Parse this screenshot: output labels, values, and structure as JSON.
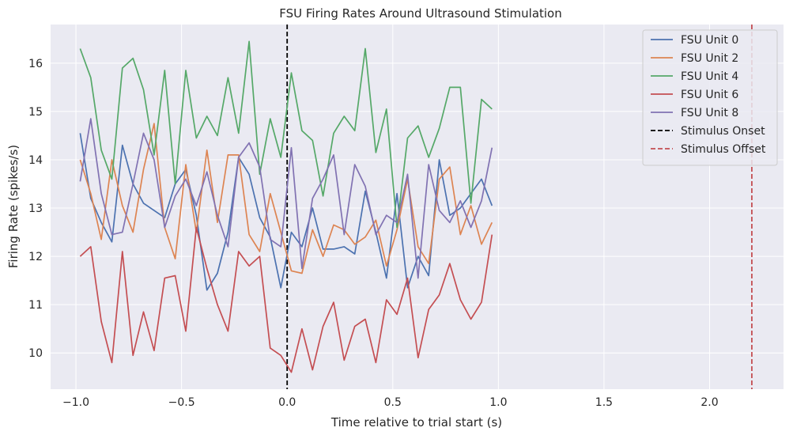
{
  "chart_data": {
    "type": "line",
    "title": "FSU Firing Rates Around Ultrasound Stimulation",
    "xlabel": "Time relative to trial start (s)",
    "ylabel": "Firing Rate (spikes/s)",
    "xlim": [
      -1.12,
      2.35
    ],
    "ylim": [
      9.25,
      16.8
    ],
    "x_ticks": [
      -1.0,
      -0.5,
      0.0,
      0.5,
      1.0,
      1.5,
      2.0
    ],
    "x_tick_labels": [
      "−1.0",
      "−0.5",
      "0.0",
      "0.5",
      "1.0",
      "1.5",
      "2.0"
    ],
    "y_ticks": [
      10,
      11,
      12,
      13,
      14,
      15,
      16
    ],
    "y_tick_labels": [
      "10",
      "11",
      "12",
      "13",
      "14",
      "15",
      "16"
    ],
    "grid": true,
    "legend_position": "top-right",
    "x": [
      -0.98,
      -0.93,
      -0.88,
      -0.83,
      -0.78,
      -0.73,
      -0.68,
      -0.63,
      -0.58,
      -0.53,
      -0.48,
      -0.43,
      -0.38,
      -0.33,
      -0.28,
      -0.23,
      -0.18,
      -0.13,
      -0.08,
      -0.03,
      0.02,
      0.07,
      0.12,
      0.17,
      0.22,
      0.27,
      0.32,
      0.37,
      0.42,
      0.47,
      0.52,
      0.57,
      0.62,
      0.67,
      0.72,
      0.77,
      0.82,
      0.87,
      0.92,
      0.97
    ],
    "series": [
      {
        "name": "FSU Unit 0",
        "color": "#4c72b0",
        "values": [
          14.55,
          13.2,
          12.7,
          12.3,
          14.3,
          13.5,
          13.1,
          12.95,
          12.8,
          13.5,
          13.8,
          12.85,
          11.3,
          11.65,
          12.5,
          14.05,
          13.7,
          12.8,
          12.4,
          11.35,
          12.5,
          12.2,
          13.0,
          12.15,
          12.15,
          12.2,
          12.05,
          13.35,
          12.5,
          11.55,
          13.3,
          11.35,
          12.0,
          11.6,
          14.0,
          12.85,
          13.0,
          13.3,
          13.6,
          13.05
        ]
      },
      {
        "name": "FSU Unit 2",
        "color": "#dd8452",
        "values": [
          14.0,
          13.3,
          12.35,
          14.0,
          13.05,
          12.5,
          13.8,
          14.75,
          12.6,
          11.95,
          13.9,
          12.5,
          14.2,
          12.7,
          14.1,
          14.1,
          12.45,
          12.1,
          13.3,
          12.5,
          11.7,
          11.65,
          12.55,
          12.0,
          12.65,
          12.55,
          12.25,
          12.4,
          12.75,
          11.8,
          12.55,
          13.6,
          12.2,
          11.85,
          13.6,
          13.85,
          12.45,
          13.05,
          12.25,
          12.7
        ]
      },
      {
        "name": "FSU Unit 4",
        "color": "#55a868",
        "values": [
          16.3,
          15.7,
          14.2,
          13.6,
          15.9,
          16.1,
          15.45,
          14.1,
          15.85,
          13.5,
          15.85,
          14.45,
          14.9,
          14.5,
          15.7,
          14.55,
          16.45,
          13.7,
          14.85,
          14.05,
          15.8,
          14.6,
          14.4,
          13.25,
          14.55,
          14.9,
          14.6,
          16.3,
          14.15,
          15.05,
          12.6,
          14.45,
          14.7,
          14.05,
          14.65,
          15.5,
          15.5,
          13.1,
          15.25,
          15.05
        ]
      },
      {
        "name": "FSU Unit 6",
        "color": "#c44e52",
        "values": [
          12.0,
          12.2,
          10.65,
          9.8,
          12.1,
          9.95,
          10.85,
          10.05,
          11.55,
          11.6,
          10.45,
          12.6,
          11.75,
          11.0,
          10.45,
          12.1,
          11.8,
          12.0,
          10.1,
          9.95,
          9.6,
          10.5,
          9.65,
          10.55,
          11.05,
          9.85,
          10.55,
          10.7,
          9.8,
          11.1,
          10.8,
          11.55,
          9.9,
          10.9,
          11.2,
          11.85,
          11.1,
          10.7,
          11.05,
          12.45
        ]
      },
      {
        "name": "FSU Unit 8",
        "color": "#8172b2",
        "values": [
          13.55,
          14.85,
          13.3,
          12.45,
          12.5,
          13.5,
          14.55,
          14.0,
          12.6,
          13.25,
          13.6,
          13.05,
          13.75,
          12.85,
          12.2,
          14.05,
          14.35,
          13.85,
          12.35,
          12.2,
          14.25,
          11.75,
          13.2,
          13.6,
          14.1,
          12.45,
          13.9,
          13.45,
          12.45,
          12.85,
          12.7,
          13.7,
          11.55,
          13.9,
          12.95,
          12.7,
          13.15,
          12.6,
          13.15,
          14.25
        ]
      }
    ],
    "vlines": [
      {
        "name": "Stimulus Onset",
        "x": 0.0,
        "color": "#000000",
        "style": "dashed"
      },
      {
        "name": "Stimulus Offset",
        "x": 2.2,
        "color": "#c44e52",
        "style": "dashed"
      }
    ]
  }
}
